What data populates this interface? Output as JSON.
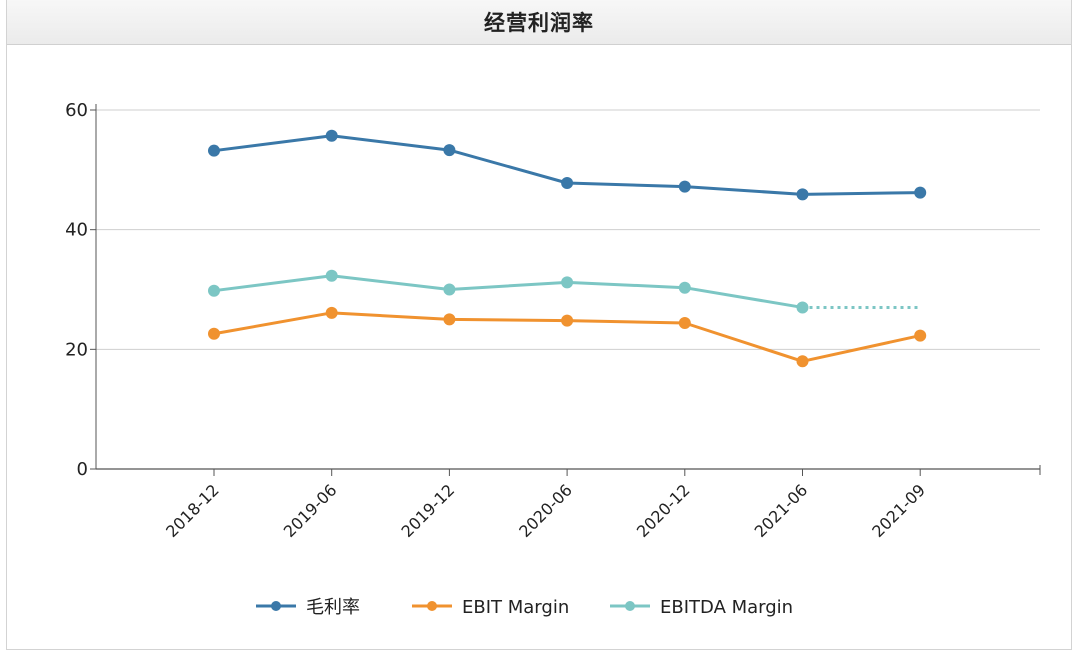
{
  "panel": {
    "title": "经营利润率"
  },
  "chart_data": {
    "type": "line",
    "title": "经营利润率",
    "xlabel": "",
    "ylabel": "",
    "categories": [
      "2018-12",
      "2019-06",
      "2019-12",
      "2020-06",
      "2020-12",
      "2021-06",
      "2021-09"
    ],
    "ylim": [
      0,
      60
    ],
    "yticks": [
      0,
      20,
      40,
      60
    ],
    "grid": true,
    "legend_position": "bottom",
    "series": [
      {
        "name": "毛利率",
        "color": "#3a78a8",
        "values": [
          53.2,
          55.7,
          53.3,
          47.8,
          47.2,
          45.9,
          46.2
        ]
      },
      {
        "name": "EBIT Margin",
        "color": "#f0922f",
        "values": [
          22.6,
          26.1,
          25.0,
          24.8,
          24.4,
          18.0,
          22.3
        ]
      },
      {
        "name": "EBITDA Margin",
        "color": "#7cc6c4",
        "values": [
          29.8,
          32.3,
          30.0,
          31.2,
          30.3,
          27.0,
          27.0
        ],
        "dotted_last_segment": true
      }
    ]
  }
}
